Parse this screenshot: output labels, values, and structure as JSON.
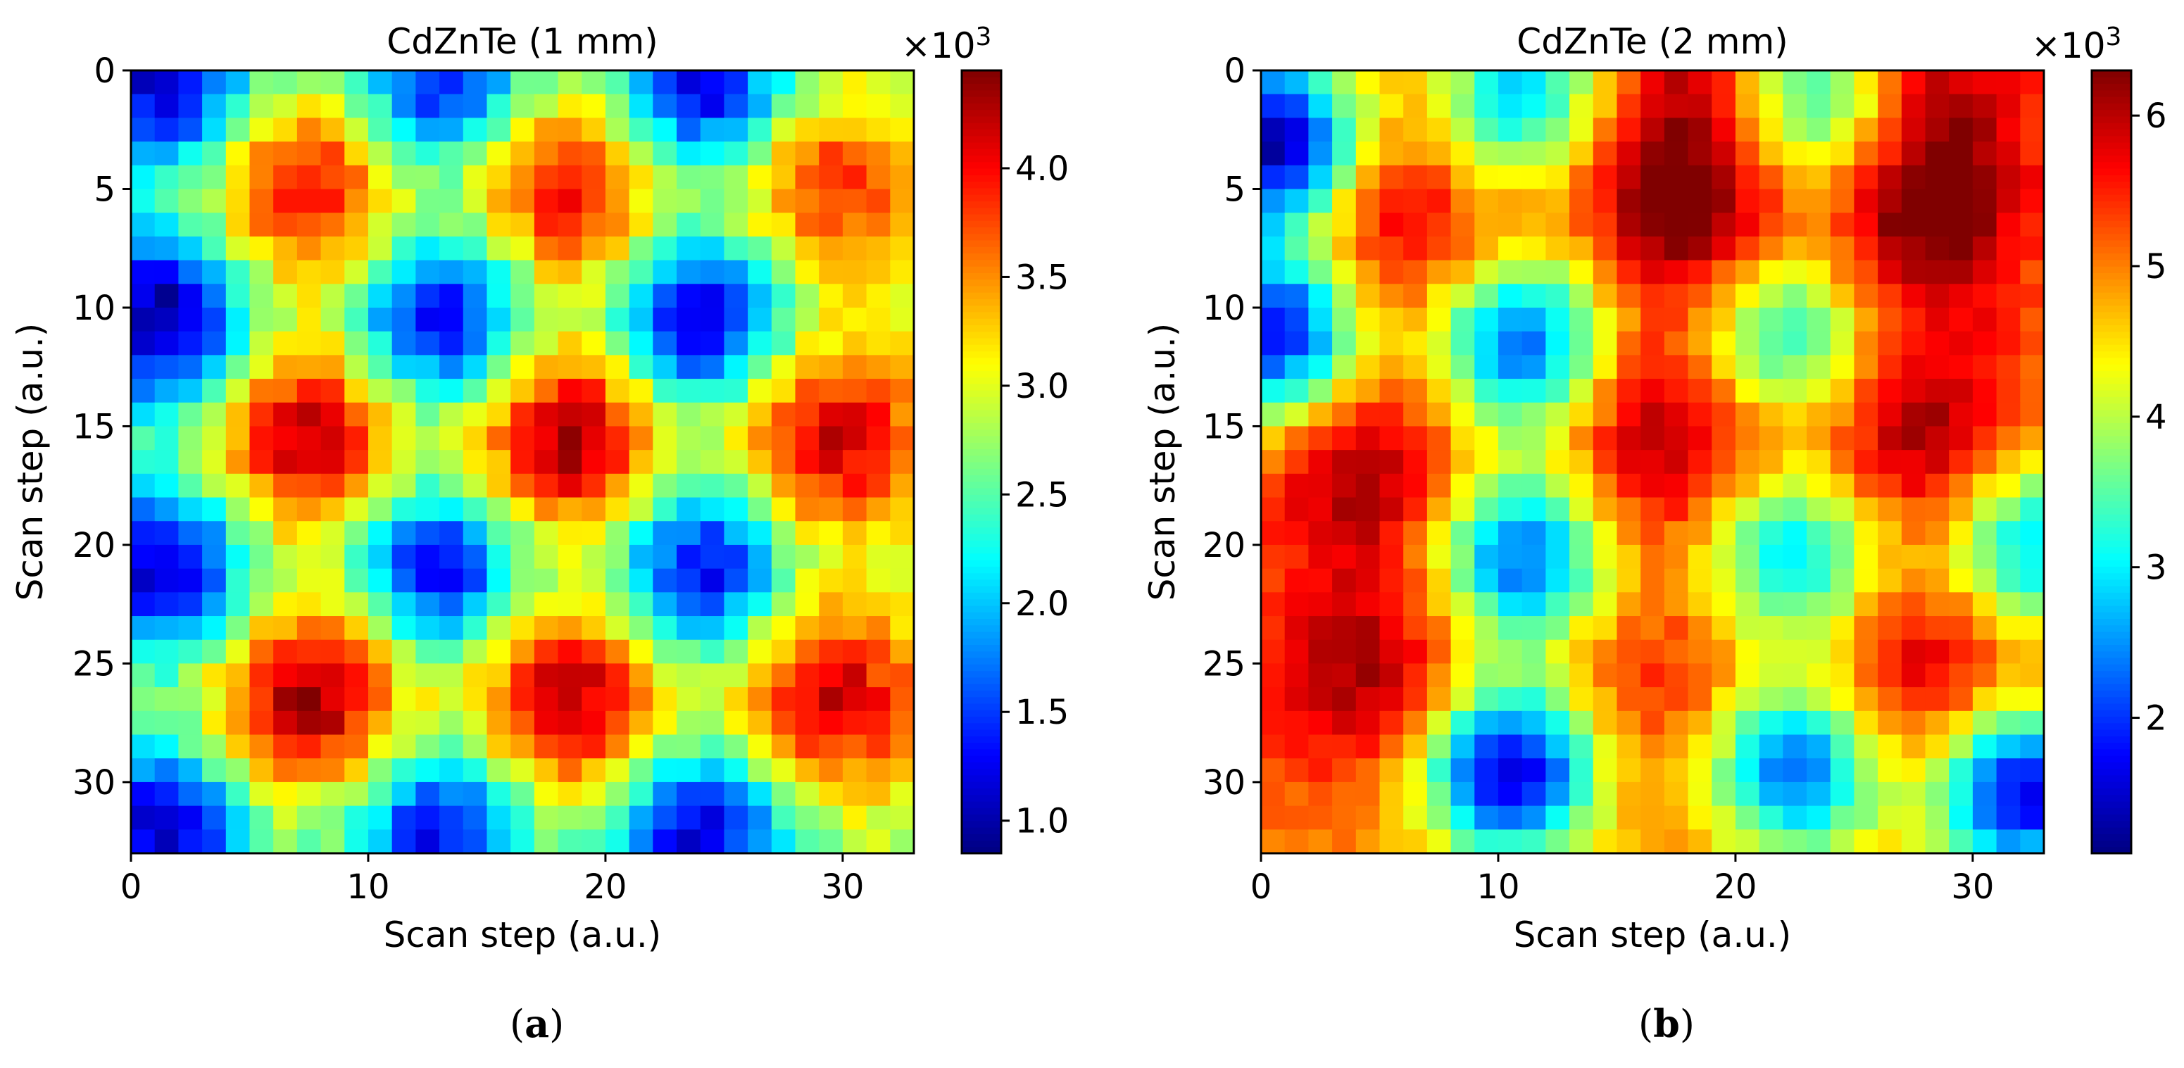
{
  "chart_data": [
    {
      "type": "heatmap",
      "title": "CdZnTe (1 mm)",
      "xlabel": "Scan step (a.u.)",
      "ylabel": "Scan step (a.u.)",
      "grid_size": 33,
      "xlim": [
        0,
        33
      ],
      "ylim": [
        33,
        0
      ],
      "xticks": [
        0,
        10,
        20,
        30
      ],
      "yticks": [
        0,
        5,
        10,
        15,
        20,
        25,
        30
      ],
      "colormap": "jet",
      "colorbar": {
        "multiplier_label": "×10",
        "multiplier_exponent": "3",
        "min": 0.85,
        "max": 4.45,
        "ticks": [
          "1.0",
          "1.5",
          "2.0",
          "2.5",
          "3.0",
          "3.5",
          "4.0"
        ],
        "tick_values": [
          1.0,
          1.5,
          2.0,
          2.5,
          3.0,
          3.5,
          4.0
        ]
      },
      "pattern": {
        "description_values_in_1e3_counts": true,
        "base": 2.7,
        "maxima": [
          {
            "x": 7.5,
            "y": 5.0,
            "peak": 4.1
          },
          {
            "x": 18.5,
            "y": 5.0,
            "peak": 4.1
          },
          {
            "x": 29.5,
            "y": 5.0,
            "peak": 3.9
          },
          {
            "x": 7.5,
            "y": 15.5,
            "peak": 4.3
          },
          {
            "x": 18.5,
            "y": 15.5,
            "peak": 4.4
          },
          {
            "x": 29.5,
            "y": 15.5,
            "peak": 4.2
          },
          {
            "x": 7.5,
            "y": 26.5,
            "peak": 4.4
          },
          {
            "x": 18.5,
            "y": 26.5,
            "peak": 4.3
          },
          {
            "x": 29.5,
            "y": 26.5,
            "peak": 4.2
          }
        ],
        "minima": [
          {
            "x": 1.5,
            "y": 0.5,
            "low": 1.0
          },
          {
            "x": 13.0,
            "y": 0.5,
            "low": 1.2
          },
          {
            "x": 24.0,
            "y": 0.5,
            "low": 1.0
          },
          {
            "x": 1.5,
            "y": 10.5,
            "low": 0.85
          },
          {
            "x": 13.0,
            "y": 10.5,
            "low": 1.0
          },
          {
            "x": 24.0,
            "y": 10.5,
            "low": 0.9
          },
          {
            "x": 1.5,
            "y": 21.0,
            "low": 1.0
          },
          {
            "x": 13.0,
            "y": 21.0,
            "low": 1.1
          },
          {
            "x": 24.0,
            "y": 21.0,
            "low": 1.1
          },
          {
            "x": 1.5,
            "y": 32.0,
            "low": 1.1
          },
          {
            "x": 13.0,
            "y": 32.0,
            "low": 1.2
          },
          {
            "x": 24.0,
            "y": 32.0,
            "low": 1.1
          }
        ]
      },
      "panel_label": "a"
    },
    {
      "type": "heatmap",
      "title": "CdZnTe (2 mm)",
      "xlabel": "Scan step (a.u.)",
      "ylabel": "Scan step (a.u.)",
      "grid_size": 33,
      "xlim": [
        0,
        33
      ],
      "ylim": [
        33,
        0
      ],
      "xticks": [
        0,
        10,
        20,
        30
      ],
      "yticks": [
        0,
        5,
        10,
        15,
        20,
        25,
        30
      ],
      "colormap": "jet",
      "colorbar": {
        "multiplier_label": "×10",
        "multiplier_exponent": "3",
        "min": 1.1,
        "max": 6.3,
        "ticks": [
          "2",
          "3",
          "4",
          "5",
          "6"
        ],
        "tick_values": [
          2,
          3,
          4,
          5,
          6
        ]
      },
      "pattern": {
        "description_values_in_1e3_counts": true,
        "base": 5.0,
        "maxima": [
          {
            "x": 5.5,
            "y": 6.5,
            "peak": 6.0
          },
          {
            "x": 18.0,
            "y": 6.5,
            "peak": 6.3
          },
          {
            "x": 28.0,
            "y": 6.5,
            "peak": 6.3
          },
          {
            "x": 18.0,
            "y": 1.5,
            "peak": 6.0
          },
          {
            "x": 28.5,
            "y": 1.5,
            "peak": 6.0
          },
          {
            "x": 4.5,
            "y": 17.0,
            "peak": 6.2
          },
          {
            "x": 17.0,
            "y": 15.5,
            "peak": 6.2
          },
          {
            "x": 28.0,
            "y": 15.5,
            "peak": 6.2
          },
          {
            "x": 4.5,
            "y": 25.5,
            "peak": 6.2
          },
          {
            "x": 28.0,
            "y": 25.5,
            "peak": 6.0
          },
          {
            "x": 16.5,
            "y": 26.0,
            "peak": 5.6
          }
        ],
        "minima": [
          {
            "x": 0.5,
            "y": 3.0,
            "low": 1.2
          },
          {
            "x": 0.5,
            "y": 11.0,
            "low": 1.6
          },
          {
            "x": 11.0,
            "y": 11.5,
            "low": 2.2
          },
          {
            "x": 22.0,
            "y": 11.0,
            "low": 3.0
          },
          {
            "x": 11.0,
            "y": 20.5,
            "low": 2.2
          },
          {
            "x": 22.5,
            "y": 20.5,
            "low": 2.8
          },
          {
            "x": 10.5,
            "y": 29.5,
            "low": 1.4
          },
          {
            "x": 22.5,
            "y": 29.5,
            "low": 2.2
          },
          {
            "x": 32.0,
            "y": 30.5,
            "low": 1.6
          },
          {
            "x": 11.0,
            "y": 1.0,
            "low": 2.8
          },
          {
            "x": 23.5,
            "y": 1.5,
            "low": 3.0
          },
          {
            "x": 32.5,
            "y": 20.0,
            "low": 2.8
          }
        ]
      },
      "panel_label": "b"
    }
  ]
}
